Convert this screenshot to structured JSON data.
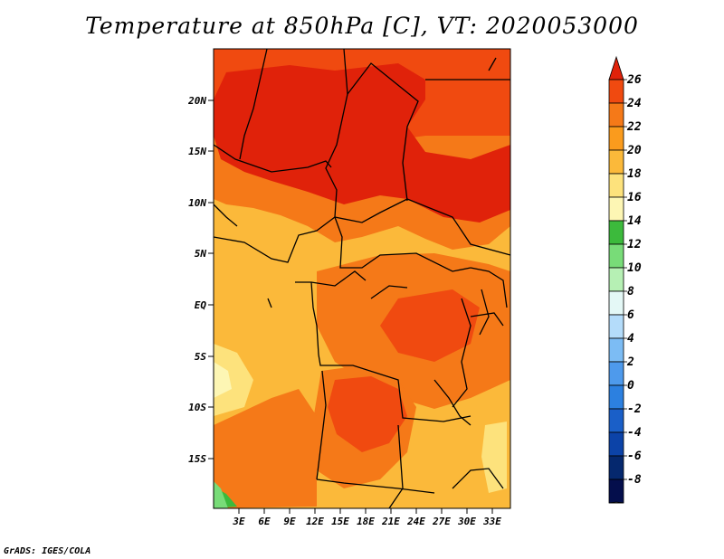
{
  "title": "Temperature at 850hPa [C], VT: 2020053000",
  "credit": "GrADS: IGES/COLA",
  "map": {
    "lat_labels": [
      "20N",
      "15N",
      "10N",
      "5N",
      "EQ",
      "5S",
      "10S",
      "15S"
    ],
    "lon_labels": [
      "3E",
      "6E",
      "9E",
      "12E",
      "15E",
      "18E",
      "21E",
      "24E",
      "27E",
      "30E",
      "33E"
    ]
  },
  "colorbar": {
    "labels": [
      "26",
      "24",
      "22",
      "20",
      "18",
      "16",
      "14",
      "12",
      "10",
      "8",
      "6",
      "4",
      "2",
      "0",
      "-2",
      "-4",
      "-6",
      "-8"
    ],
    "colors": [
      "#e0220a",
      "#f04a10",
      "#f57918",
      "#fa9b1d",
      "#fbb93a",
      "#fde27c",
      "#fdf6b4",
      "#3cba3c",
      "#78dc78",
      "#b6f0b4",
      "#e4f8f6",
      "#b4dcfa",
      "#7cbcf4",
      "#4e9aec",
      "#2c80e0",
      "#1a5fc8",
      "#0c43a8",
      "#05286e",
      "#040e4c",
      "#d4d4f4"
    ]
  }
}
